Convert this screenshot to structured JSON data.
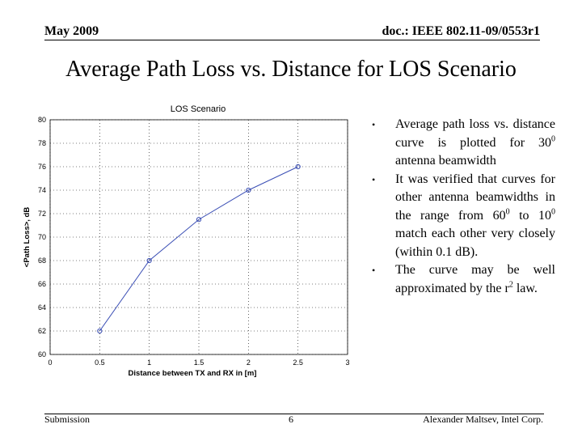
{
  "header": {
    "date": "May 2009",
    "doc": "doc.: IEEE 802.11-09/0553r1"
  },
  "slide_title": "Average Path Loss vs. Distance for LOS Scenario",
  "chart_data": {
    "type": "line",
    "title": "LOS Scenario",
    "xlabel": "Distance between TX and RX in [m]",
    "ylabel": "<Path Loss>, dB",
    "x": [
      0.5,
      1,
      1.5,
      2,
      2.5
    ],
    "values": [
      62,
      68,
      71.5,
      74,
      76
    ],
    "xlim": [
      0,
      3
    ],
    "ylim": [
      60,
      80
    ],
    "xticks": [
      "0",
      "0.5",
      "1",
      "1.5",
      "2",
      "2.5",
      "3"
    ],
    "yticks": [
      "60",
      "62",
      "64",
      "66",
      "68",
      "70",
      "72",
      "74",
      "76",
      "78",
      "80"
    ],
    "grid": true,
    "line_color": "#3b4fb5"
  },
  "bullets": [
    {
      "pre": "Average path loss vs. distance curve is plotted for 30",
      "sup": "0",
      "post": " antenna beamwidth"
    },
    {
      "pre": "It was verified that curves for other antenna beamwidths in the range from 60",
      "sup": "0",
      "mid": " to 10",
      "sup2": "0",
      "post": " match each other very closely (within 0.1 dB)."
    },
    {
      "pre": "The curve may be well approximated by the r",
      "sup": "2",
      "post": " law."
    }
  ],
  "footer": {
    "left": "Submission",
    "page": "6",
    "right": "Alexander Maltsev, Intel Corp."
  }
}
